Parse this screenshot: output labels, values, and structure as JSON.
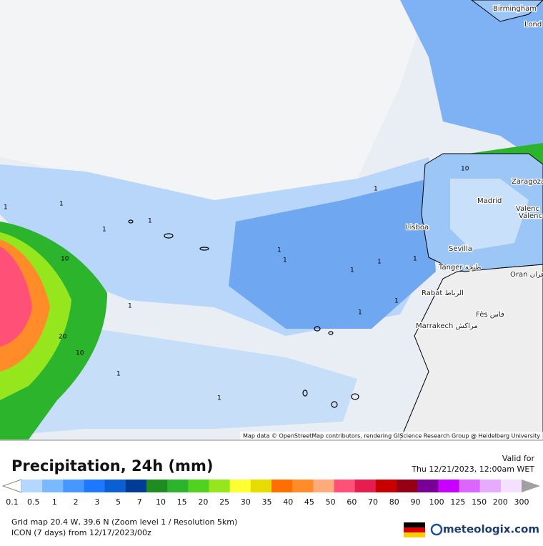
{
  "map": {
    "cities": [
      "Birmingham",
      "Lond",
      "Zaragoza",
      "Madrid",
      "Valenc",
      "Valenc",
      "Lisboa",
      "Sevilla",
      "Tanger طنجة",
      "Rabat الرباط",
      "Fès فاس",
      "Oran وهران",
      "Marrakech مراكش"
    ],
    "contour_labels": [
      "1",
      "1",
      "1",
      "1",
      "1",
      "1",
      "1",
      "1",
      "1",
      "1",
      "1",
      "1",
      "10",
      "20",
      "10",
      "10",
      "1",
      "1",
      "1"
    ],
    "attribution": "Map data © OpenStreetMap contributors, rendering GIScience Research Group @ Heidelberg University"
  },
  "legend": {
    "title": "Precipitation, 24h (mm)",
    "valid_label": "Valid for",
    "valid_time": "Thu 12/21/2023, 12:00am WET",
    "ticks": [
      "0.1",
      "0.5",
      "1",
      "2",
      "3",
      "5",
      "7",
      "10",
      "15",
      "20",
      "25",
      "30",
      "35",
      "40",
      "45",
      "50",
      "60",
      "70",
      "80",
      "90",
      "100",
      "125",
      "150",
      "200",
      "300"
    ],
    "colors": [
      "#b4d7ff",
      "#78b9ff",
      "#4697ff",
      "#1e78ff",
      "#0a5fd2",
      "#003c96",
      "#1e8c1e",
      "#2db42d",
      "#50d21e",
      "#96e61e",
      "#ffff32",
      "#e6dc00",
      "#ff6e00",
      "#ff8c28",
      "#ffaa78",
      "#ff5078",
      "#e61e50",
      "#c80000",
      "#960014",
      "#780096",
      "#c800ff",
      "#dc64ff",
      "#e6aaff",
      "#f5e0ff"
    ],
    "under_color": "#ffffff",
    "over_color": "#a0a0a0"
  },
  "footer": {
    "grid": "Grid map 20.4 W, 39.6 N (Zoom level 1 / Resolution 5km)",
    "model": "ICON (7 days) from 12/17/2023/00z",
    "brand": "meteologix.com"
  }
}
